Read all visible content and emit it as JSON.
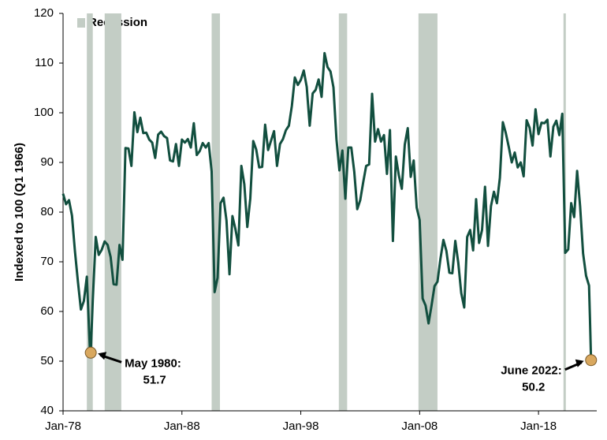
{
  "chart_data": {
    "type": "line",
    "y_label": "Indexed to 100 (Q1 1966)",
    "legend": "Recession",
    "recession_color": "#c3cdc5",
    "recessions": [
      [
        1980.0,
        1980.5
      ],
      [
        1981.5,
        1982.9
      ],
      [
        1990.5,
        1991.2
      ],
      [
        2001.2,
        2001.9
      ],
      [
        2007.9,
        2009.5
      ],
      [
        2020.1,
        2020.3
      ]
    ],
    "xlim": [
      1978,
      2022.9
    ],
    "xticks": [
      {
        "value": 1978,
        "label": "Jan-78"
      },
      {
        "value": 1988,
        "label": "Jan-88"
      },
      {
        "value": 1998,
        "label": "Jan-98"
      },
      {
        "value": 2008,
        "label": "Jan-08"
      },
      {
        "value": 2018,
        "label": "Jan-18"
      }
    ],
    "ylim": [
      40,
      120
    ],
    "yticks": [
      40,
      50,
      60,
      70,
      80,
      90,
      100,
      110,
      120
    ],
    "series": [
      {
        "color": "#124f3f",
        "x": [
          1978,
          1978.25,
          1978.5,
          1978.75,
          1979,
          1979.25,
          1979.5,
          1979.75,
          1980,
          1980.25,
          1980.33,
          1980.5,
          1980.75,
          1981,
          1981.25,
          1981.5,
          1981.75,
          1982,
          1982.25,
          1982.5,
          1982.75,
          1983,
          1983.25,
          1983.5,
          1983.75,
          1984,
          1984.25,
          1984.5,
          1984.75,
          1985,
          1985.25,
          1985.5,
          1985.75,
          1986,
          1986.25,
          1986.5,
          1986.75,
          1987,
          1987.25,
          1987.5,
          1987.75,
          1988,
          1988.25,
          1988.5,
          1988.75,
          1989,
          1989.25,
          1989.5,
          1989.75,
          1990,
          1990.25,
          1990.5,
          1990.75,
          1991,
          1991.25,
          1991.5,
          1991.75,
          1992,
          1992.25,
          1992.5,
          1992.75,
          1993,
          1993.25,
          1993.5,
          1993.75,
          1994,
          1994.25,
          1994.5,
          1994.75,
          1995,
          1995.25,
          1995.5,
          1995.75,
          1996,
          1996.25,
          1996.5,
          1996.75,
          1997,
          1997.25,
          1997.5,
          1997.75,
          1998,
          1998.25,
          1998.5,
          1998.75,
          1999,
          1999.25,
          1999.5,
          1999.75,
          2000,
          2000.25,
          2000.5,
          2000.75,
          2001,
          2001.25,
          2001.5,
          2001.75,
          2002,
          2002.25,
          2002.5,
          2002.75,
          2003,
          2003.25,
          2003.5,
          2003.75,
          2004,
          2004.25,
          2004.5,
          2004.75,
          2005,
          2005.25,
          2005.5,
          2005.75,
          2006,
          2006.25,
          2006.5,
          2006.75,
          2007,
          2007.25,
          2007.5,
          2007.75,
          2008,
          2008.25,
          2008.5,
          2008.75,
          2009,
          2009.25,
          2009.5,
          2009.75,
          2010,
          2010.25,
          2010.5,
          2010.75,
          2011,
          2011.25,
          2011.5,
          2011.75,
          2012,
          2012.25,
          2012.5,
          2012.75,
          2013,
          2013.25,
          2013.5,
          2013.75,
          2014,
          2014.25,
          2014.5,
          2014.75,
          2015,
          2015.25,
          2015.5,
          2015.75,
          2016,
          2016.25,
          2016.5,
          2016.75,
          2017,
          2017.25,
          2017.5,
          2017.75,
          2018,
          2018.25,
          2018.5,
          2018.75,
          2019,
          2019.25,
          2019.5,
          2019.75,
          2020,
          2020.25,
          2020.5,
          2020.75,
          2021,
          2021.25,
          2021.5,
          2021.75,
          2022,
          2022.25,
          2022.33,
          2022.42
        ],
        "values": [
          83.7,
          81.6,
          82.4,
          79.3,
          72.1,
          66.0,
          60.4,
          62.1,
          67.0,
          52.7,
          51.7,
          62.3,
          75.0,
          71.4,
          72.4,
          74.1,
          73.4,
          71.0,
          65.5,
          65.4,
          73.4,
          70.4,
          92.9,
          92.8,
          89.3,
          100.1,
          96.1,
          99.0,
          95.9,
          96.0,
          94.6,
          94.0,
          90.9,
          95.6,
          96.2,
          95.3,
          94.9,
          90.4,
          90.2,
          93.7,
          89.3,
          94.6,
          94.0,
          94.7,
          93.0,
          97.9,
          91.5,
          92.3,
          93.9,
          93.0,
          93.9,
          88.2,
          63.9,
          66.8,
          81.8,
          82.9,
          78.3,
          67.5,
          79.2,
          76.6,
          73.3,
          89.3,
          85.6,
          77.0,
          82.7,
          94.3,
          92.6,
          89.0,
          89.1,
          97.6,
          92.5,
          94.4,
          96.3,
          89.3,
          93.7,
          94.7,
          96.5,
          97.4,
          101.4,
          107.1,
          105.6,
          106.6,
          108.5,
          105.2,
          97.4,
          103.9,
          104.6,
          106.7,
          103.2,
          112.0,
          109.2,
          108.3,
          105.1,
          94.7,
          88.4,
          92.4,
          82.7,
          93.0,
          93.0,
          88.1,
          80.6,
          82.4,
          86.0,
          89.3,
          89.6,
          103.8,
          94.2,
          96.7,
          94.2,
          95.5,
          87.7,
          96.5,
          74.2,
          91.2,
          87.4,
          84.7,
          93.6,
          96.9,
          87.1,
          90.4,
          80.9,
          78.4,
          62.6,
          61.2,
          57.6,
          61.2,
          65.1,
          66.0,
          70.6,
          74.4,
          72.2,
          67.8,
          67.7,
          74.2,
          69.8,
          63.7,
          60.8,
          75.0,
          76.4,
          72.3,
          82.6,
          73.8,
          76.4,
          85.1,
          73.2,
          81.2,
          84.1,
          81.8,
          86.9,
          98.1,
          95.9,
          93.1,
          90.0,
          92.0,
          89.0,
          90.0,
          87.2,
          98.5,
          97.0,
          93.4,
          100.7,
          95.7,
          98.0,
          97.9,
          98.6,
          91.2,
          97.2,
          98.4,
          95.5,
          99.8,
          71.8,
          72.5,
          81.8,
          79.0,
          88.3,
          81.2,
          71.7,
          67.2,
          65.2,
          58.4,
          50.2
        ]
      }
    ],
    "marker_color": "#d9a85f",
    "annotations": [
      {
        "label": "May 1980:",
        "value_label": "51.7",
        "x": 1980.33,
        "value": 51.7
      },
      {
        "label": "June 2022:",
        "value_label": "50.2",
        "x": 2022.42,
        "value": 50.2
      }
    ]
  }
}
